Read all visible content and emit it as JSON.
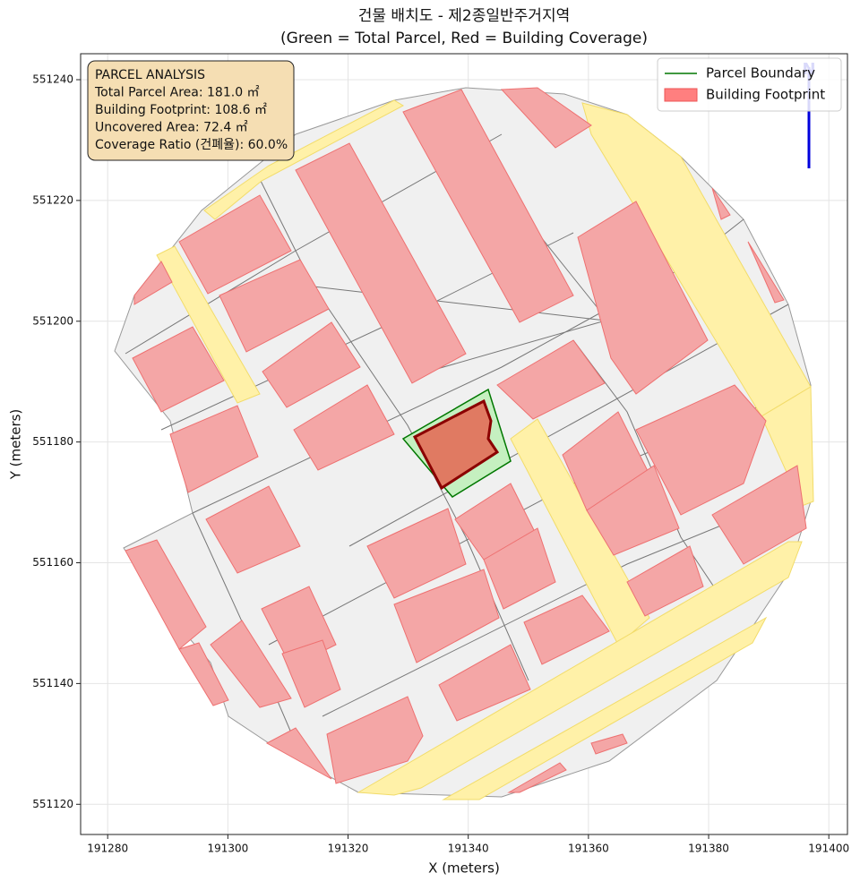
{
  "chart_data": {
    "type": "map",
    "title": "건물 배치도 - 제2종일반주거지역",
    "subtitle": "(Green = Total Parcel, Red = Building Coverage)",
    "x_label": "X (meters)",
    "y_label": "Y (meters)",
    "xlim": [
      191275.5,
      191403.1
    ],
    "ylim": [
      551115.0,
      551244.3
    ],
    "xticks": [
      191280,
      191300,
      191320,
      191340,
      191360,
      191380,
      191400
    ],
    "yticks": [
      551120,
      551140,
      551160,
      551180,
      551200,
      551220,
      551240
    ],
    "grid": true,
    "legend_position": "upper right",
    "series": [
      {
        "name": "Parcel Boundary",
        "color": "#007700"
      },
      {
        "name": "Building Footprint",
        "color": "#ff7f7f"
      }
    ],
    "annotation": [
      "PARCEL ANALYSIS",
      "Total Parcel Area: 181.0 ㎡",
      "Building Footprint: 108.6 ㎡",
      "Uncovered Area: 72.4 ㎡",
      "Coverage Ratio (건폐율): 60.0%"
    ],
    "north_label": "N"
  }
}
